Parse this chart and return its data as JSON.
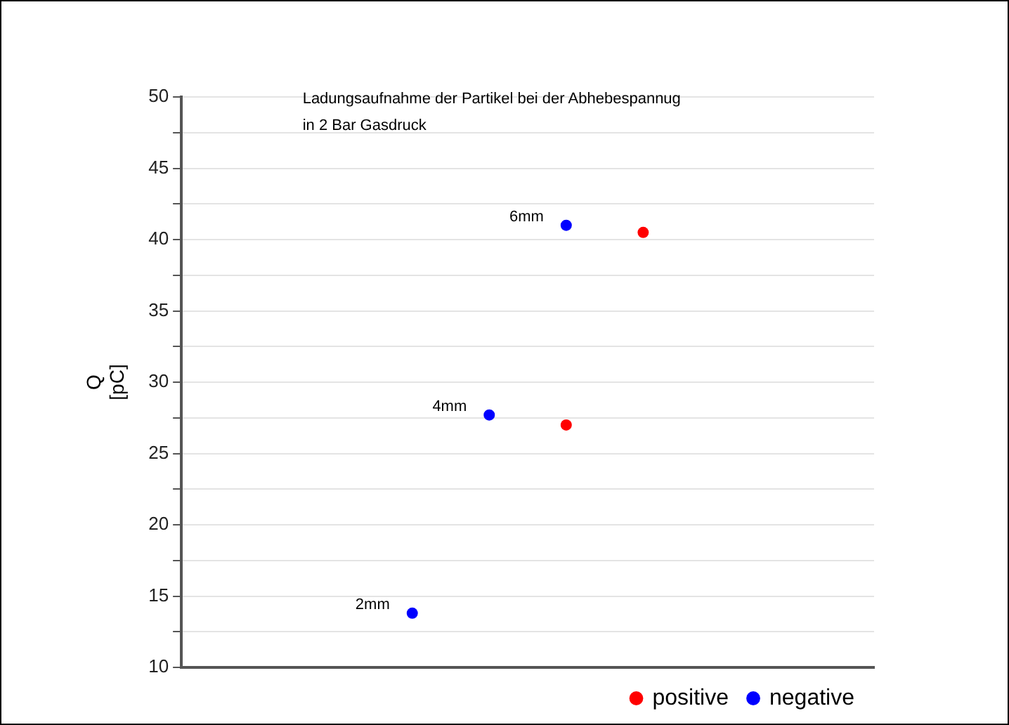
{
  "chart_data": {
    "type": "scatter",
    "title": "Ladungsaufnahme der Partikel bei der Abhebespannug\nin 2 Bar Gasdruck",
    "ylabel": "Q\n[pC]",
    "categories": [
      null,
      null,
      null,
      null,
      null,
      null,
      null,
      null,
      null,
      null
    ],
    "series": [
      {
        "name": "positive",
        "color": "#ff0000",
        "values": [
          null,
          null,
          null,
          null,
          null,
          27,
          40.5,
          null,
          null,
          null
        ]
      },
      {
        "name": "negative",
        "color": "#0000ff",
        "values": [
          null,
          null,
          null,
          13.8,
          27.7,
          41,
          null,
          null,
          null,
          null
        ]
      }
    ],
    "annotations": [
      "2mm",
      "4mm",
      "6mm"
    ],
    "ylim": [
      10,
      50
    ],
    "yticks": [
      10,
      {
        "value": 12.5,
        "label": null
      },
      15,
      {
        "value": 17.5,
        "label": null
      },
      20,
      {
        "value": 22.5,
        "label": null
      },
      25,
      {
        "value": 27.5,
        "label": null
      },
      30,
      {
        "value": 32.5,
        "label": null
      },
      35,
      {
        "value": 37.5,
        "label": null
      },
      40,
      {
        "value": 42.5,
        "label": null
      },
      45,
      {
        "value": 47.5,
        "label": null
      },
      50
    ],
    "grid": "y",
    "legend": "bottom right",
    "marker": "circle",
    "tick_labels": "y"
  }
}
